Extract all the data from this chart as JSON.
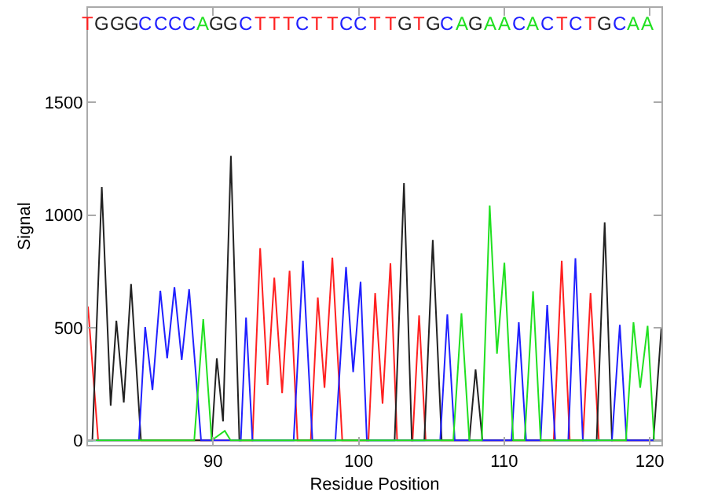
{
  "chart_data": {
    "type": "line",
    "xlabel": "Residue Position",
    "ylabel": "Signal",
    "xlim": [
      81.4,
      120.8
    ],
    "xticks": [
      90,
      100,
      110,
      120
    ],
    "ylim": [
      -20,
      1920
    ],
    "yticks": [
      0,
      500,
      1000,
      1500
    ],
    "grid": false,
    "marker": "none",
    "line_style": "solid",
    "series": [
      {
        "color": "#ff2020",
        "x": [
          81.4,
          82.1,
          92.7,
          93.23,
          93.74,
          94.2,
          94.74,
          95.25,
          95.8,
          96.71,
          97.19,
          97.65,
          98.19,
          98.87,
          100.67,
          101.13,
          101.64,
          102.18,
          102.64,
          103.7,
          104.15,
          104.6,
          113.4,
          113.95,
          114.5,
          115.4,
          115.93,
          116.5,
          120.8
        ],
        "values": [
          594,
          0,
          0,
          853,
          245,
          722,
          210,
          753,
          0,
          0,
          634,
          233,
          811,
          0,
          0,
          653,
          163,
          786,
          0,
          0,
          555,
          0,
          0,
          797,
          0,
          0,
          653,
          0,
          0
        ]
      },
      {
        "color": "#222222",
        "x": [
          81.4,
          81.7,
          82.35,
          82.96,
          83.35,
          83.86,
          84.36,
          85.04,
          89.9,
          90.25,
          90.68,
          91.22,
          91.8,
          102.47,
          103.11,
          103.65,
          104.51,
          105.09,
          105.7,
          107.6,
          108.03,
          108.5,
          116.35,
          116.9,
          117.4,
          120.25,
          120.8
        ],
        "values": [
          0,
          0,
          1124,
          154,
          531,
          168,
          694,
          0,
          0,
          364,
          84,
          1263,
          0,
          0,
          1142,
          0,
          0,
          890,
          0,
          0,
          315,
          0,
          0,
          967,
          0,
          0,
          503
        ]
      },
      {
        "color": "#2020ff",
        "x": [
          81.4,
          84.9,
          85.33,
          85.83,
          86.37,
          86.84,
          87.34,
          87.84,
          88.35,
          89.17,
          91.9,
          92.26,
          92.7,
          95.53,
          96.17,
          96.82,
          98.4,
          99.13,
          99.62,
          100.13,
          100.56,
          105.6,
          106.09,
          106.6,
          110.5,
          111.0,
          111.5,
          112.5,
          112.95,
          113.5,
          114.4,
          114.89,
          115.4,
          117.4,
          117.94,
          118.4,
          120.8
        ],
        "values": [
          0,
          0,
          503,
          224,
          664,
          364,
          680,
          357,
          671,
          0,
          0,
          545,
          0,
          0,
          797,
          0,
          0,
          769,
          303,
          704,
          0,
          0,
          559,
          0,
          0,
          524,
          0,
          0,
          601,
          0,
          0,
          809,
          0,
          0,
          513,
          0,
          0
        ]
      },
      {
        "color": "#20e020",
        "x": [
          81.4,
          88.7,
          89.32,
          89.9,
          90.8,
          91.2,
          106.5,
          107.06,
          107.6,
          108.46,
          109.0,
          109.5,
          110.01,
          110.62,
          111.4,
          111.98,
          112.5,
          118.36,
          118.88,
          119.34,
          119.85,
          120.3,
          120.8
        ],
        "values": [
          0,
          0,
          538,
          0,
          42,
          0,
          0,
          564,
          0,
          0,
          1042,
          385,
          788,
          0,
          0,
          662,
          0,
          0,
          524,
          233,
          508,
          0,
          0
        ]
      }
    ],
    "annotations": [
      "T",
      "G",
      "G",
      "G",
      "C",
      "C",
      "C",
      "C",
      "A",
      "G",
      "G",
      "C",
      "T",
      "T",
      "T",
      "C",
      "T",
      "T",
      "C",
      "C",
      "T",
      "T",
      "G",
      "T",
      "G",
      "C",
      "A",
      "G",
      "A",
      "A",
      "C",
      "A",
      "C",
      "T",
      "C",
      "T",
      "G",
      "C",
      "A",
      "A"
    ]
  }
}
